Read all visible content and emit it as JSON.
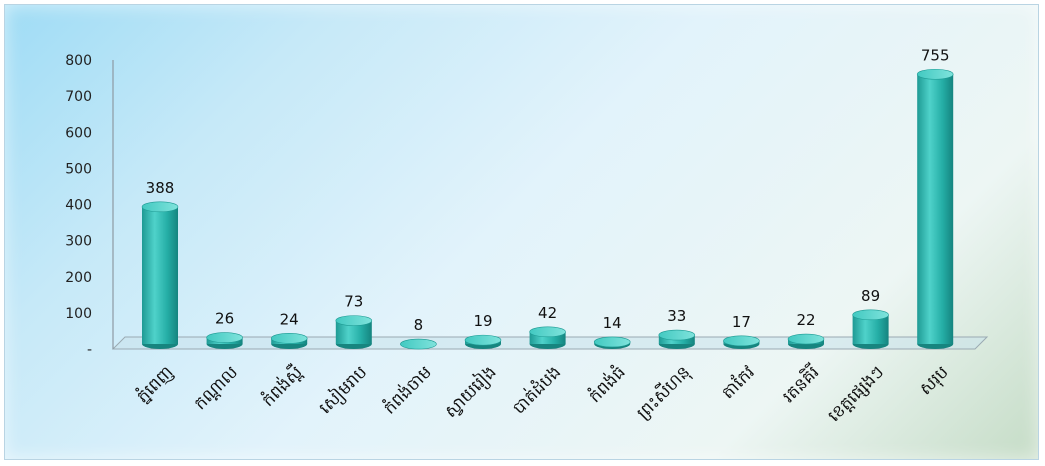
{
  "chart_data": {
    "type": "bar",
    "title": "",
    "xlabel": "",
    "ylabel": "",
    "ylim": [
      0,
      800
    ],
    "yticks": [
      "-",
      "100",
      "200",
      "300",
      "400",
      "500",
      "600",
      "700",
      "800"
    ],
    "grid": false,
    "legend": "none",
    "categories": [
      "ភ្នំពេញ",
      "កណ្តាល",
      "កំពង់ស្ពឺ",
      "សៀមរាប",
      "កំពង់ចាម",
      "ស្វាយរៀង",
      "បាត់ដំបង",
      "កំពង់ធំ",
      "ព្រះសីហនុ",
      "តាកែវ",
      "រតនគិរី",
      "ខេត្តផ្សេងៗ",
      "សរុប"
    ],
    "values": [
      388,
      26,
      24,
      73,
      8,
      19,
      42,
      14,
      33,
      17,
      22,
      89,
      755
    ],
    "bar_color": "#2bb8b0"
  }
}
